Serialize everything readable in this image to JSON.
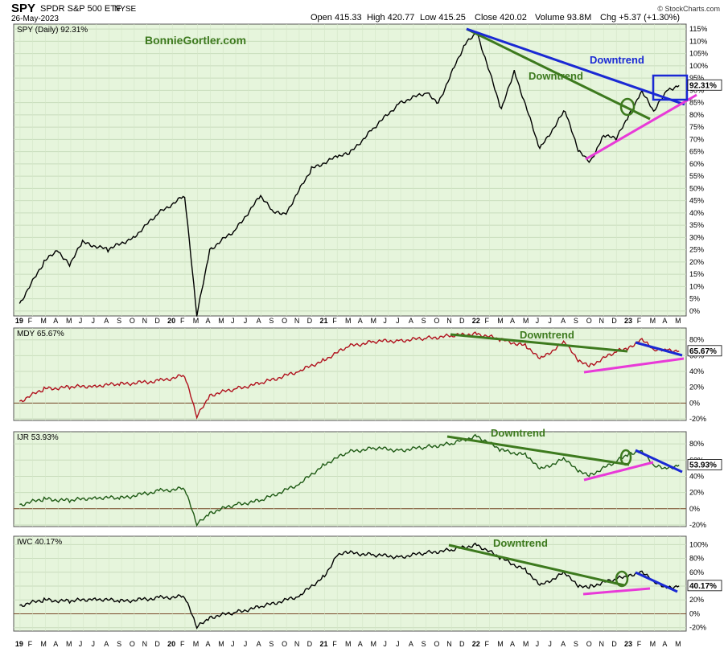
{
  "header": {
    "symbol": "SPY",
    "name": "SPDR S&P 500 ETF",
    "exchange": "NYSE",
    "date": "26-May-2023",
    "open": "Open 415.33",
    "high": "High 420.77",
    "low": "Low 415.25",
    "close": "Close 420.02",
    "volume": "Volume 93.8M",
    "chg": "Chg +5.37 (+1.30%)",
    "copyright": "© StockCharts.com",
    "watermark": "BonnieGortler.com"
  },
  "colors": {
    "panel_bg": "#e6f5dc",
    "spy": "#000000",
    "mdy": "#b0121e",
    "ijr": "#1e5a14",
    "iwc": "#000000",
    "green_trend": "#3d7a1e",
    "blue_trend": "#1a29d4",
    "magenta_trend": "#e83ad8",
    "zero_line": "#7a4a2a"
  },
  "x_axis_labels": [
    "19",
    "F",
    "M",
    "A",
    "M",
    "J",
    "J",
    "A",
    "S",
    "O",
    "N",
    "D",
    "20",
    "F",
    "M",
    "A",
    "M",
    "J",
    "J",
    "A",
    "S",
    "O",
    "N",
    "D",
    "21",
    "F",
    "M",
    "A",
    "M",
    "J",
    "J",
    "A",
    "S",
    "O",
    "N",
    "D",
    "22",
    "F",
    "M",
    "A",
    "M",
    "J",
    "J",
    "A",
    "S",
    "O",
    "N",
    "D",
    "23",
    "F",
    "M",
    "A",
    "M"
  ],
  "chart_data": [
    {
      "type": "line",
      "label": "SPY (Daily) 92.31%",
      "last_value_label": "92.31%",
      "annotations": [
        "Downtrend",
        "Downtrend"
      ],
      "y_ticks": [
        "115%",
        "110%",
        "105%",
        "100%",
        "95%",
        "90%",
        "85%",
        "80%",
        "75%",
        "70%",
        "65%",
        "60%",
        "55%",
        "50%",
        "45%",
        "40%",
        "35%",
        "30%",
        "25%",
        "20%",
        "15%",
        "10%",
        "5%",
        "0%"
      ],
      "ylim": [
        -2,
        117
      ],
      "series": [
        {
          "x": [
            "2019-01",
            "2019-03",
            "2019-04",
            "2019-05",
            "2019-06",
            "2019-08",
            "2019-10",
            "2019-12",
            "2020-02",
            "2020-03",
            "2020-04",
            "2020-06",
            "2020-08",
            "2020-09",
            "2020-10",
            "2020-12",
            "2021-02",
            "2021-03",
            "2021-05",
            "2021-07",
            "2021-09",
            "2021-10",
            "2021-12",
            "2022-01",
            "2022-03",
            "2022-04",
            "2022-06",
            "2022-08",
            "2022-09",
            "2022-10",
            "2022-11",
            "2022-12",
            "2023-01",
            "2023-02",
            "2023-03",
            "2023-04",
            "2023-05"
          ],
          "values": [
            3,
            20,
            25,
            19,
            28,
            25,
            30,
            40,
            47,
            -2,
            25,
            33,
            47,
            40,
            40,
            58,
            63,
            64,
            75,
            85,
            89,
            85,
            108,
            114,
            82,
            98,
            66,
            82,
            65,
            61,
            72,
            70,
            80,
            90,
            81,
            90,
            92
          ]
        }
      ]
    },
    {
      "type": "line",
      "label": "MDY 65.67%",
      "last_value_label": "65.67%",
      "annotations": [
        "Downtrend"
      ],
      "y_ticks": [
        "80%",
        "60%",
        "40%",
        "20%",
        "0%",
        "-20%"
      ],
      "ylim": [
        -22,
        95
      ],
      "series": [
        {
          "x": [
            "2019-01",
            "2019-03",
            "2019-05",
            "2019-07",
            "2019-09",
            "2019-12",
            "2020-02",
            "2020-03",
            "2020-04",
            "2020-06",
            "2020-08",
            "2020-11",
            "2021-01",
            "2021-03",
            "2021-05",
            "2021-07",
            "2021-09",
            "2021-11",
            "2022-01",
            "2022-03",
            "2022-05",
            "2022-06",
            "2022-08",
            "2022-09",
            "2022-10",
            "2022-12",
            "2023-01",
            "2023-02",
            "2023-03",
            "2023-04",
            "2023-05"
          ],
          "values": [
            2,
            18,
            20,
            22,
            24,
            28,
            35,
            -18,
            10,
            18,
            25,
            40,
            55,
            72,
            78,
            79,
            82,
            85,
            88,
            80,
            72,
            55,
            78,
            52,
            48,
            65,
            70,
            82,
            66,
            68,
            65.7
          ]
        }
      ]
    },
    {
      "type": "line",
      "label": "IJR 53.93%",
      "last_value_label": "53.93%",
      "annotations": [
        "Downtrend"
      ],
      "y_ticks": [
        "80%",
        "60%",
        "40%",
        "20%",
        "0%",
        "-20%"
      ],
      "ylim": [
        -22,
        95
      ],
      "series": [
        {
          "x": [
            "2019-01",
            "2019-03",
            "2019-05",
            "2019-07",
            "2019-09",
            "2019-12",
            "2020-02",
            "2020-03",
            "2020-04",
            "2020-06",
            "2020-08",
            "2020-11",
            "2021-01",
            "2021-03",
            "2021-05",
            "2021-07",
            "2021-09",
            "2021-11",
            "2022-01",
            "2022-03",
            "2022-05",
            "2022-06",
            "2022-08",
            "2022-09",
            "2022-10",
            "2022-12",
            "2023-01",
            "2023-02",
            "2023-03",
            "2023-04",
            "2023-05"
          ],
          "values": [
            5,
            12,
            10,
            14,
            13,
            22,
            25,
            -20,
            -5,
            5,
            10,
            30,
            55,
            70,
            75,
            72,
            76,
            80,
            90,
            72,
            66,
            48,
            62,
            45,
            42,
            58,
            68,
            72,
            52,
            50,
            53.9
          ]
        }
      ]
    },
    {
      "type": "line",
      "label": "IWC 40.17%",
      "last_value_label": "40.17%",
      "annotations": [
        "Downtrend"
      ],
      "y_ticks": [
        "100%",
        "80%",
        "60%",
        "40%",
        "20%",
        "0%",
        "-20%"
      ],
      "ylim": [
        -25,
        112
      ],
      "series": [
        {
          "x": [
            "2019-01",
            "2019-03",
            "2019-05",
            "2019-07",
            "2019-09",
            "2019-12",
            "2020-02",
            "2020-03",
            "2020-04",
            "2020-06",
            "2020-08",
            "2020-11",
            "2021-01",
            "2021-02",
            "2021-03",
            "2021-05",
            "2021-07",
            "2021-09",
            "2021-11",
            "2022-01",
            "2022-03",
            "2022-05",
            "2022-06",
            "2022-08",
            "2022-09",
            "2022-10",
            "2022-12",
            "2023-01",
            "2023-02",
            "2023-03",
            "2023-04",
            "2023-05"
          ],
          "values": [
            12,
            20,
            18,
            22,
            18,
            23,
            25,
            -20,
            -5,
            2,
            10,
            25,
            55,
            85,
            88,
            85,
            82,
            88,
            92,
            100,
            80,
            62,
            40,
            60,
            38,
            40,
            50,
            55,
            62,
            45,
            38,
            40.2
          ]
        }
      ]
    }
  ]
}
